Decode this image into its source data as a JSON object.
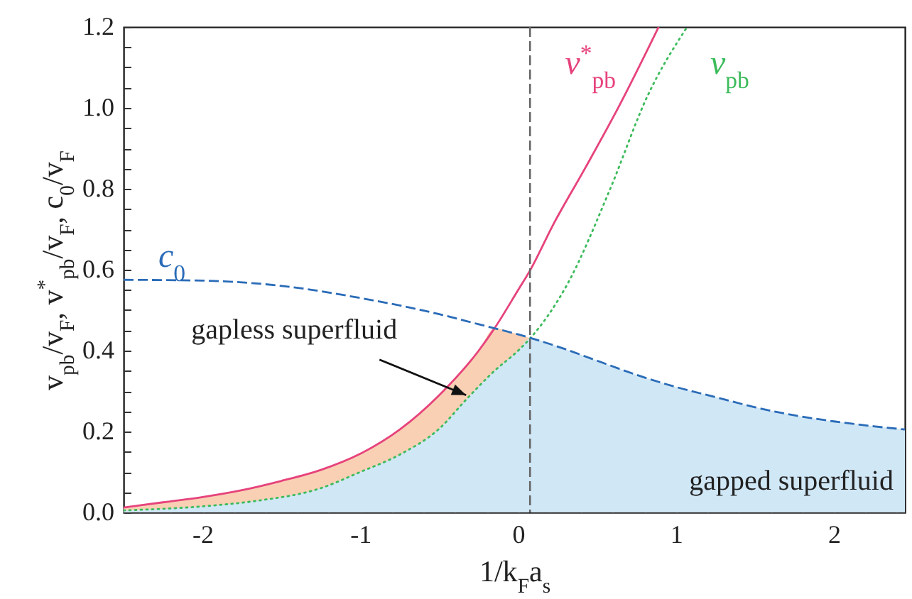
{
  "chart_data": {
    "type": "line",
    "xlabel": "1/k$_{F}$a$_{s}$",
    "ylabel": "v$_{pb}$/v$_{F}$, v$^{*}$$_{pb}$/v$_{F}$, c$_{0}$/v$_{F}$",
    "xlim": [
      -2.5,
      2.45
    ],
    "ylim": [
      0,
      1.2
    ],
    "xticks": [
      {
        "value": -2.4,
        "label": null
      },
      {
        "value": -2.2,
        "label": null
      },
      -2,
      {
        "value": -1.8,
        "label": null
      },
      {
        "value": -1.6,
        "label": null
      },
      {
        "value": -1.4,
        "label": null
      },
      {
        "value": -1.2,
        "label": null
      },
      -1,
      {
        "value": -0.8,
        "label": null
      },
      {
        "value": -0.6,
        "label": null
      },
      {
        "value": -0.4,
        "label": null
      },
      {
        "value": -0.2,
        "label": null
      },
      0,
      {
        "value": 0.2,
        "label": null
      },
      {
        "value": 0.4,
        "label": null
      },
      {
        "value": 0.6,
        "label": null
      },
      {
        "value": 0.8,
        "label": null
      },
      1,
      {
        "value": 1.2,
        "label": null
      },
      {
        "value": 1.4,
        "label": null
      },
      {
        "value": 1.6,
        "label": null
      },
      {
        "value": 1.8,
        "label": null
      },
      2,
      {
        "value": 2.2,
        "label": null
      },
      {
        "value": 2.4,
        "label": null
      }
    ],
    "yticks": [
      {
        "value": 0,
        "label": "0.0"
      },
      {
        "value": 0.05,
        "label": null
      },
      {
        "value": 0.1,
        "label": null
      },
      {
        "value": 0.15,
        "label": null
      },
      {
        "value": 0.2,
        "label": "0.2"
      },
      {
        "value": 0.25,
        "label": null
      },
      {
        "value": 0.3,
        "label": null
      },
      {
        "value": 0.35,
        "label": null
      },
      {
        "value": 0.4,
        "label": "0.4"
      },
      {
        "value": 0.45,
        "label": null
      },
      {
        "value": 0.5,
        "label": null
      },
      {
        "value": 0.55,
        "label": null
      },
      {
        "value": 0.6,
        "label": "0.6"
      },
      {
        "value": 0.65,
        "label": null
      },
      {
        "value": 0.7,
        "label": null
      },
      {
        "value": 0.75,
        "label": null
      },
      {
        "value": 0.8,
        "label": "0.8"
      },
      {
        "value": 0.85,
        "label": null
      },
      {
        "value": 0.9,
        "label": null
      },
      {
        "value": 0.95,
        "label": null
      },
      {
        "value": 1.0,
        "label": "1.0"
      },
      {
        "value": 1.05,
        "label": null
      },
      {
        "value": 1.1,
        "label": null
      },
      {
        "value": 1.15,
        "label": null
      },
      {
        "value": 1.2,
        "label": "1.2"
      }
    ],
    "series": [
      {
        "type": "area",
        "color": "#f9d0b4",
        "x": [
          -2.5,
          -2.25,
          -2,
          -1.75,
          -1.5,
          -1.25,
          -1,
          -0.75,
          -0.5,
          -0.25,
          -0.15,
          0,
          0.075
        ],
        "values": [
          0.012,
          0.025,
          0.038,
          0.055,
          0.078,
          0.105,
          0.145,
          0.205,
          0.29,
          0.4,
          0.455,
          0.44,
          0.431
        ]
      },
      {
        "type": "area",
        "color": "#d0e7f6",
        "x": [
          -2.5,
          -2,
          -1.67,
          -1.25,
          -1,
          -0.75,
          -0.5,
          -0.32,
          -0.15,
          0,
          0.075,
          0.25,
          0.5,
          0.75,
          1,
          1.25,
          1.5,
          1.75,
          2,
          2.25,
          2.45
        ],
        "values": [
          0.005,
          0.015,
          0.028,
          0.06,
          0.1,
          0.143,
          0.207,
          0.283,
          0.35,
          0.4,
          0.43,
          0.41,
          0.375,
          0.34,
          0.31,
          0.285,
          0.26,
          0.24,
          0.225,
          0.213,
          0.205
        ]
      },
      {
        "name": "v$^{*}$$_{pb}$",
        "type": "line",
        "color": "#e6437c",
        "line_style": "solid",
        "x": [
          -2.5,
          -2.25,
          -2,
          -1.75,
          -1.5,
          -1.25,
          -1,
          -0.75,
          -0.5,
          -0.25,
          -0.15,
          0,
          0.075,
          0.22,
          0.43,
          0.64,
          0.89
        ],
        "values": [
          0.012,
          0.025,
          0.038,
          0.055,
          0.078,
          0.105,
          0.145,
          0.205,
          0.29,
          0.4,
          0.455,
          0.55,
          0.598,
          0.71,
          0.855,
          1.005,
          1.2
        ]
      },
      {
        "name": "v$_{pb}$",
        "type": "line",
        "color": "#3dbb5c",
        "line_style": "dotted",
        "x": [
          -2.5,
          -2,
          -1.67,
          -1.25,
          -1,
          -0.75,
          -0.5,
          -0.32,
          -0.15,
          0,
          0.075,
          0.31,
          0.58,
          0.82,
          1.07
        ],
        "values": [
          0.005,
          0.015,
          0.028,
          0.06,
          0.1,
          0.143,
          0.207,
          0.283,
          0.35,
          0.4,
          0.43,
          0.563,
          0.797,
          1.03,
          1.2
        ]
      },
      {
        "name": "c$_{0}$",
        "type": "line",
        "color": "#2b6cb8",
        "line_style": "dashed",
        "x": [
          -2.5,
          -2,
          -1.5,
          -1,
          -0.5,
          -0.25,
          0,
          0.25,
          0.5,
          0.75,
          1,
          1.25,
          1.5,
          1.75,
          2,
          2.25,
          2.45
        ],
        "values": [
          0.575,
          0.573,
          0.56,
          0.53,
          0.49,
          0.465,
          0.44,
          0.41,
          0.375,
          0.34,
          0.31,
          0.285,
          0.26,
          0.24,
          0.225,
          0.213,
          0.205
        ]
      }
    ],
    "ref_lines": [
      {
        "axis": "x",
        "value": 0.075,
        "color": "#666666",
        "line_style": "dashed"
      }
    ],
    "annotations": [
      {
        "text": "gapless superfluid",
        "x": -0.33,
        "y": 0.29
      },
      "gapped superfluid"
    ]
  }
}
